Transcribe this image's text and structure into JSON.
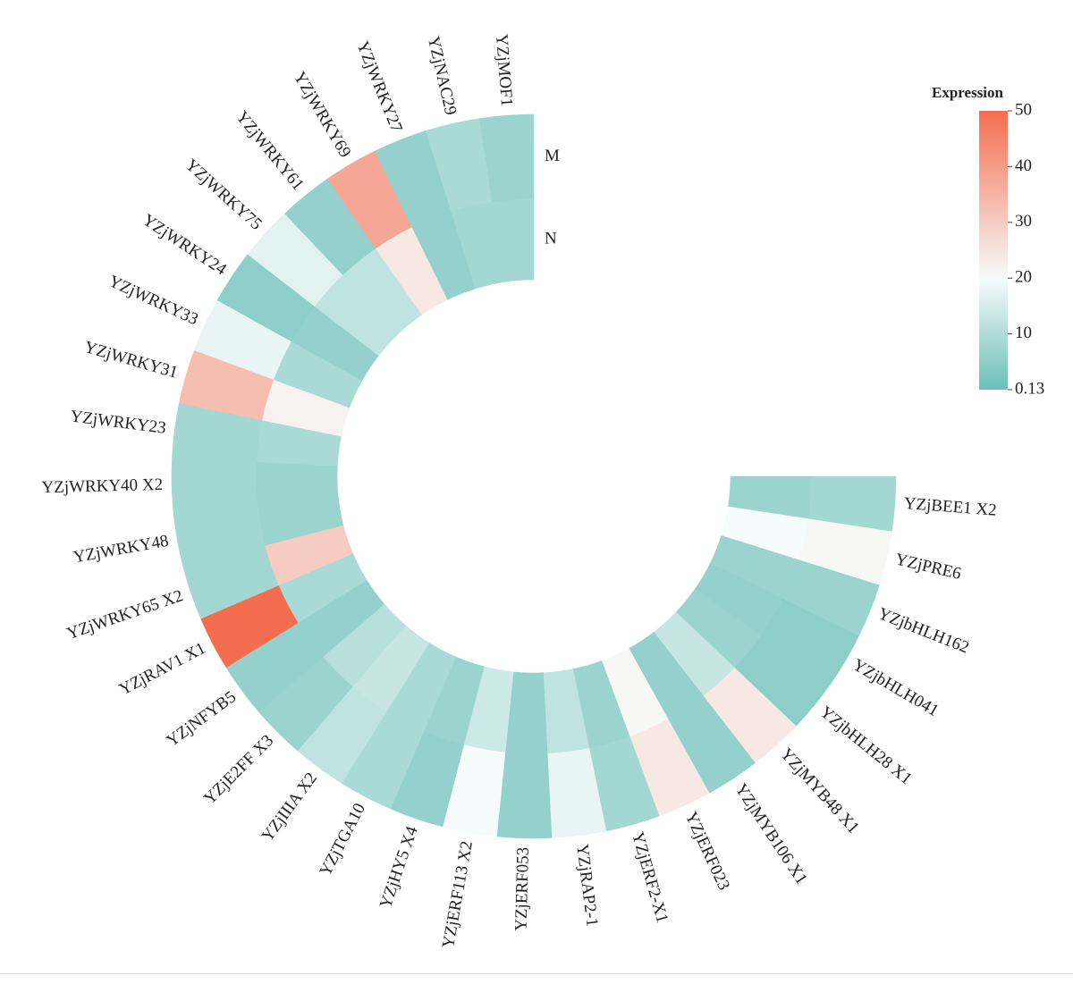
{
  "chart_data": {
    "type": "heatmap",
    "layout": "circular",
    "title": "",
    "ring_labels": [
      "M",
      "N"
    ],
    "genes": [
      "YZjMOF1",
      "YZjNAC29",
      "YZjWRKY27",
      "YZjWRKY69",
      "YZjWRKY61",
      "YZjWRKY75",
      "YZjWRKY24",
      "YZjWRKY33",
      "YZjWRKY31",
      "YZjWRKY23",
      "YZjWRKY40 X2",
      "YZjWRKY48",
      "YZjWRKY65 X2",
      "YZjRAV1 X1",
      "YZjNFYB5",
      "YZjE2FF X3",
      "YZjIIIA X2",
      "YZjTGA10",
      "YZjHY5 X4",
      "YZjERF113 X2",
      "YZjERF053",
      "YZjRAP2-1",
      "YZjERF2-X1",
      "YZjERF023",
      "YZjMYB106 X1",
      "YZjMYB48 X1",
      "YZjbHLH28 X1",
      "YZjbHLH041",
      "YZjbHLH162",
      "YZjPRE6",
      "YZjBEE1 X2"
    ],
    "series": [
      {
        "name": "M",
        "values": [
          7,
          9,
          6,
          38,
          6,
          17,
          5,
          18,
          33,
          8,
          8,
          8,
          8,
          50,
          6,
          7,
          12,
          9,
          6,
          20,
          6,
          18,
          8,
          24,
          6,
          24,
          5,
          5,
          7,
          21,
          8
        ]
      },
      {
        "name": "N",
        "values": [
          8,
          8,
          6,
          24,
          12,
          12,
          6,
          9,
          22,
          9,
          7,
          7,
          30,
          9,
          6,
          11,
          13,
          9,
          7,
          14,
          6,
          12,
          7,
          21,
          6,
          13,
          7,
          6,
          7,
          20,
          7
        ]
      }
    ],
    "colorbar": {
      "title": "Expression",
      "min": 0.13,
      "max": 50,
      "ticks": [
        "50",
        "40",
        "30",
        "20",
        "10",
        "0.13"
      ],
      "colors": {
        "low": "#6bbfb8",
        "mid": "#f7fbfb",
        "high": "#f46d4f"
      }
    }
  }
}
